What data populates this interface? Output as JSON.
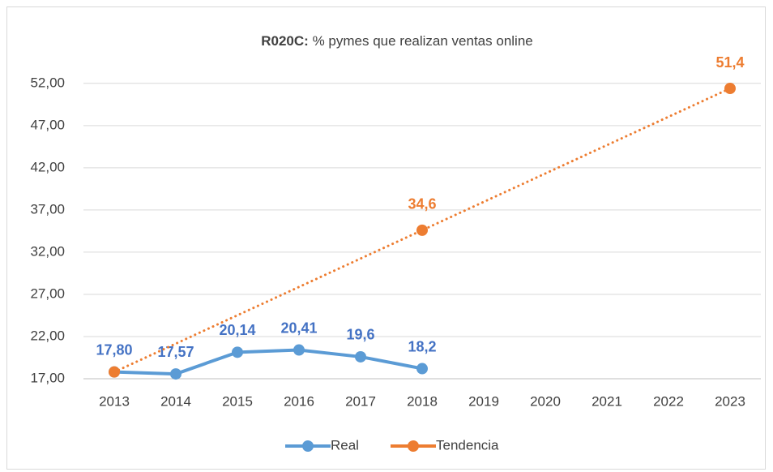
{
  "chart_data": {
    "type": "line",
    "title_lead": "R020C:",
    "title": "% pymes que realizan ventas online",
    "categories": [
      "2013",
      "2014",
      "2015",
      "2016",
      "2017",
      "2018",
      "2019",
      "2020",
      "2021",
      "2022",
      "2023"
    ],
    "series": [
      {
        "name": "Real",
        "color": "#5b9bd5",
        "label_color": "#4472c4",
        "style": "solid",
        "values": [
          17.8,
          17.57,
          20.14,
          20.41,
          19.6,
          18.2,
          null,
          null,
          null,
          null,
          null
        ],
        "value_labels": [
          "17,80",
          "17,57",
          "20,14",
          "20,41",
          "19,6",
          "18,2",
          null,
          null,
          null,
          null,
          null
        ]
      },
      {
        "name": "Tendencia",
        "color": "#ed7d31",
        "label_color": "#ed7d31",
        "style": "dotted",
        "x": [
          "2013",
          "2018",
          "2023"
        ],
        "values": [
          17.8,
          34.6,
          51.4
        ],
        "value_labels": [
          null,
          "34,6",
          "51,4"
        ]
      }
    ],
    "ylim": [
      17,
      54
    ],
    "yticks": [
      {
        "value": 17,
        "label": "17,00"
      },
      {
        "value": 22,
        "label": "22,00"
      },
      {
        "value": 27,
        "label": "27,00"
      },
      {
        "value": 32,
        "label": "32,00"
      },
      {
        "value": 37,
        "label": "37,00"
      },
      {
        "value": 42,
        "label": "42,00"
      },
      {
        "value": 47,
        "label": "47,00"
      },
      {
        "value": 52,
        "label": "52,00"
      }
    ],
    "grid": true,
    "legend": "bottom"
  }
}
